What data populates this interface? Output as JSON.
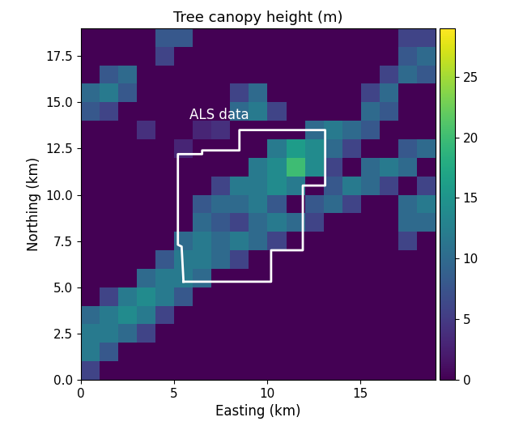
{
  "chart_data": {
    "type": "heatmap",
    "title": "Tree canopy height (m)",
    "x_label": "Easting (km)",
    "y_label": "Northing (km)",
    "xlim": [
      0,
      19
    ],
    "ylim": [
      0,
      19
    ],
    "xticks": [
      0,
      5,
      10,
      15
    ],
    "yticks": [
      {
        "value": 0,
        "label": "0.0"
      },
      2.5,
      {
        "value": 5,
        "label": "5.0"
      },
      7.5,
      {
        "value": 10,
        "label": "10.0"
      },
      12.5,
      {
        "value": 15,
        "label": "15.0"
      },
      17.5
    ],
    "color": "viridis",
    "color_range": [
      0,
      29
    ],
    "color_ticks": [
      0,
      5,
      10,
      15,
      20,
      25
    ],
    "cells": [
      [
        0,
        0,
        0,
        0,
        8,
        8,
        0,
        0,
        0,
        0,
        0,
        0,
        0,
        0,
        0,
        0,
        0,
        6,
        6
      ],
      [
        0,
        0,
        0,
        0,
        6,
        0,
        0,
        0,
        0,
        0,
        0,
        0,
        0,
        0,
        0,
        0,
        0,
        8,
        10
      ],
      [
        0,
        8,
        10,
        0,
        0,
        0,
        0,
        0,
        0,
        0,
        0,
        0,
        0,
        0,
        0,
        0,
        6,
        10,
        8
      ],
      [
        10,
        12,
        8,
        0,
        0,
        0,
        0,
        0,
        6,
        10,
        0,
        0,
        0,
        0,
        0,
        6,
        10,
        0,
        0
      ],
      [
        8,
        6,
        0,
        0,
        0,
        0,
        0,
        0,
        10,
        12,
        6,
        0,
        0,
        0,
        0,
        10,
        8,
        0,
        0
      ],
      [
        0,
        0,
        0,
        4,
        0,
        0,
        3,
        4,
        0,
        0,
        0,
        0,
        10,
        12,
        10,
        8,
        0,
        0,
        0
      ],
      [
        0,
        0,
        0,
        0,
        0,
        3,
        0,
        0,
        0,
        0,
        12,
        16,
        14,
        10,
        6,
        0,
        0,
        8,
        10
      ],
      [
        0,
        0,
        0,
        0,
        0,
        0,
        0,
        0,
        0,
        12,
        14,
        20,
        14,
        6,
        0,
        10,
        12,
        10,
        0
      ],
      [
        0,
        0,
        0,
        0,
        0,
        0,
        0,
        6,
        12,
        12,
        14,
        12,
        0,
        8,
        12,
        10,
        6,
        0,
        6
      ],
      [
        0,
        0,
        0,
        0,
        0,
        0,
        8,
        10,
        10,
        12,
        8,
        0,
        8,
        10,
        6,
        0,
        0,
        10,
        12
      ],
      [
        0,
        0,
        0,
        0,
        0,
        0,
        10,
        8,
        6,
        10,
        12,
        10,
        6,
        0,
        0,
        0,
        0,
        10,
        10
      ],
      [
        0,
        0,
        0,
        0,
        0,
        10,
        12,
        10,
        12,
        10,
        6,
        0,
        0,
        0,
        0,
        0,
        0,
        6,
        0
      ],
      [
        0,
        0,
        0,
        0,
        8,
        12,
        12,
        10,
        6,
        0,
        0,
        0,
        0,
        0,
        0,
        0,
        0,
        0,
        0
      ],
      [
        0,
        0,
        0,
        10,
        12,
        12,
        10,
        0,
        0,
        0,
        0,
        0,
        0,
        0,
        0,
        0,
        0,
        0,
        0
      ],
      [
        0,
        6,
        12,
        14,
        12,
        8,
        0,
        0,
        0,
        0,
        0,
        0,
        0,
        0,
        0,
        0,
        0,
        0,
        0
      ],
      [
        10,
        12,
        14,
        12,
        6,
        0,
        0,
        0,
        0,
        0,
        0,
        0,
        0,
        0,
        0,
        0,
        0,
        0,
        0
      ],
      [
        12,
        12,
        10,
        6,
        0,
        0,
        0,
        0,
        0,
        0,
        0,
        0,
        0,
        0,
        0,
        0,
        0,
        0,
        0
      ],
      [
        12,
        8,
        0,
        0,
        0,
        0,
        0,
        0,
        0,
        0,
        0,
        0,
        0,
        0,
        0,
        0,
        0,
        0,
        0
      ],
      [
        6,
        0,
        0,
        0,
        0,
        0,
        0,
        0,
        0,
        0,
        0,
        0,
        0,
        0,
        0,
        0,
        0,
        0,
        0
      ]
    ],
    "annotations": [
      {
        "text": "ALS data",
        "x": [
          5.5,
          10.2,
          10.2,
          11.9,
          11.9,
          13.1,
          13.1,
          8.5,
          8.5,
          6.5,
          6.5,
          5.2,
          5.2,
          5.4,
          5.5
        ],
        "y": [
          5.3,
          5.3,
          7.0,
          7.0,
          10.5,
          10.5,
          13.5,
          13.5,
          12.4,
          12.4,
          12.2,
          12.2,
          7.3,
          7.2,
          5.3
        ]
      }
    ]
  }
}
